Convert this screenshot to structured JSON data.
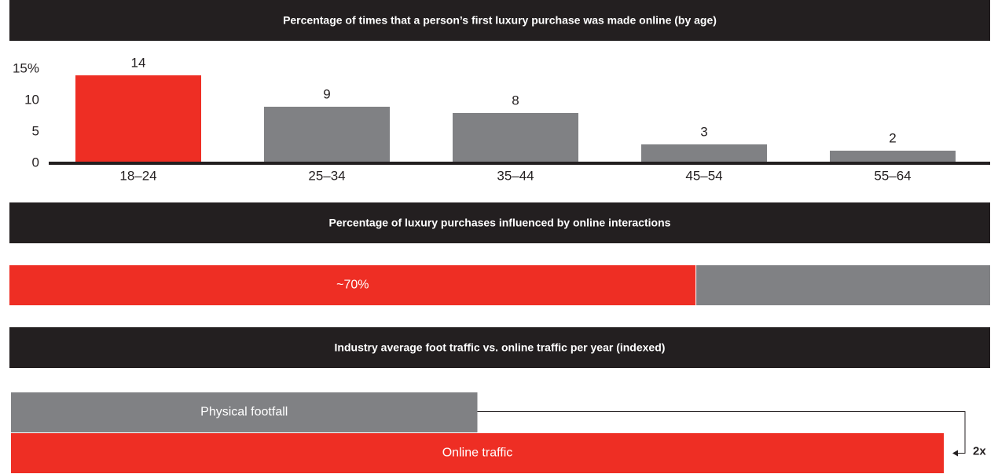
{
  "chart_data": [
    {
      "type": "bar",
      "title": "Percentage of times that a person’s first luxury purchase was made online (by age)",
      "categories": [
        "18–24",
        "25–34",
        "35–44",
        "45–54",
        "55–64"
      ],
      "values": [
        14,
        9,
        8,
        3,
        2
      ],
      "colors": [
        "#ee2e24",
        "#808184",
        "#808184",
        "#808184",
        "#808184"
      ],
      "ylim": [
        0,
        15
      ],
      "yticks": [
        0,
        5,
        10,
        {
          "value": 15,
          "label": "15%"
        }
      ]
    },
    {
      "type": "progress",
      "title": "Percentage of luxury purchases influenced by online interactions",
      "values": [
        70
      ],
      "value_labels": [
        "~70%"
      ],
      "xlim": [
        0,
        100
      ],
      "color": "#ee2e24",
      "track_color": "#808184"
    },
    {
      "type": "hbar",
      "title": "Industry average foot traffic vs. online traffic per year (indexed)",
      "categories": [
        "Physical footfall",
        "Online traffic"
      ],
      "values": [
        1,
        2
      ],
      "colors": [
        "#808184",
        "#ee2e24"
      ],
      "xlim": [
        0,
        2
      ],
      "annotation": "2x"
    }
  ]
}
